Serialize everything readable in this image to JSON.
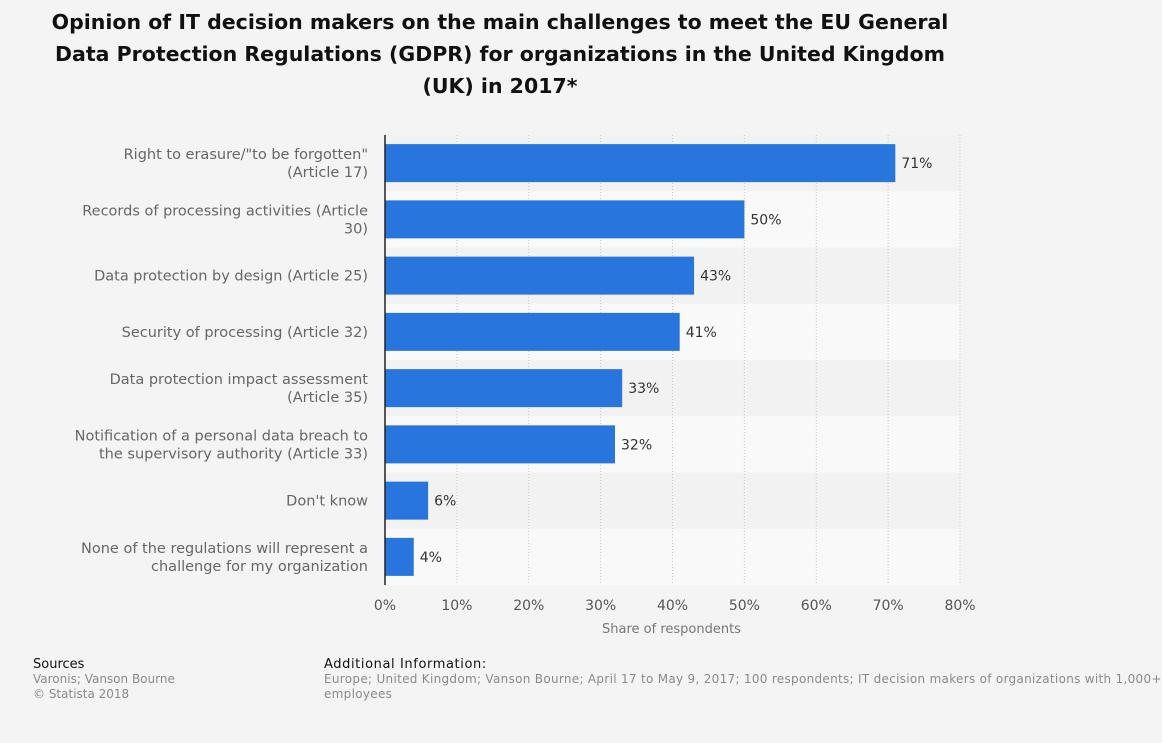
{
  "title": "Opinion of IT decision makers on the main challenges to meet the EU General Data Protection Regulations (GDPR) for organizations in the United Kingdom (UK) in 2017*",
  "chart_data": {
    "type": "bar",
    "orientation": "horizontal",
    "title": "Opinion of IT decision makers on the main challenges to meet the EU General Data Protection Regulations (GDPR) for organizations in the United Kingdom (UK) in 2017*",
    "categories": [
      [
        "Right to erasure/\"to be forgotten\"",
        "(Article 17)"
      ],
      [
        "Records of processing activities (Article",
        "30)"
      ],
      [
        "Data protection by design (Article 25)"
      ],
      [
        "Security of processing (Article 32)"
      ],
      [
        "Data protection impact assessment",
        "(Article 35)"
      ],
      [
        "Notification of a personal data breach to",
        "the supervisory authority (Article 33)"
      ],
      [
        "Don't know"
      ],
      [
        "None of the regulations will represent a",
        "challenge for my organization"
      ]
    ],
    "values": [
      71,
      50,
      43,
      41,
      33,
      32,
      6,
      4
    ],
    "value_labels": [
      "71%",
      "50%",
      "43%",
      "41%",
      "33%",
      "32%",
      "6%",
      "4%"
    ],
    "xlim": [
      0,
      80
    ],
    "x_ticks": [
      0,
      10,
      20,
      30,
      40,
      50,
      60,
      70,
      80
    ],
    "x_tick_labels": [
      "0%",
      "10%",
      "20%",
      "30%",
      "40%",
      "50%",
      "60%",
      "70%",
      "80%"
    ],
    "xlabel": "Share of respondents",
    "ylabel": "",
    "grid": true,
    "colors": {
      "bar": "#2876dd",
      "band_a": "#f2f2f2",
      "band_b": "#f9f9f9",
      "grid": "#c8c8c8",
      "axis": "#222222",
      "category_text": "#666666",
      "value_text": "#333333",
      "tick_text": "#555555"
    }
  },
  "footer": {
    "sources_heading": "Sources",
    "sources_lines": [
      "Varonis; Vanson Bourne",
      "© Statista 2018"
    ],
    "info_heading": "Additional Information:",
    "info_lines": [
      "Europe; United Kingdom; Vanson Bourne; April 17 to May 9, 2017; 100 respondents; IT decision makers of organizations with 1,000+",
      "employees"
    ]
  }
}
